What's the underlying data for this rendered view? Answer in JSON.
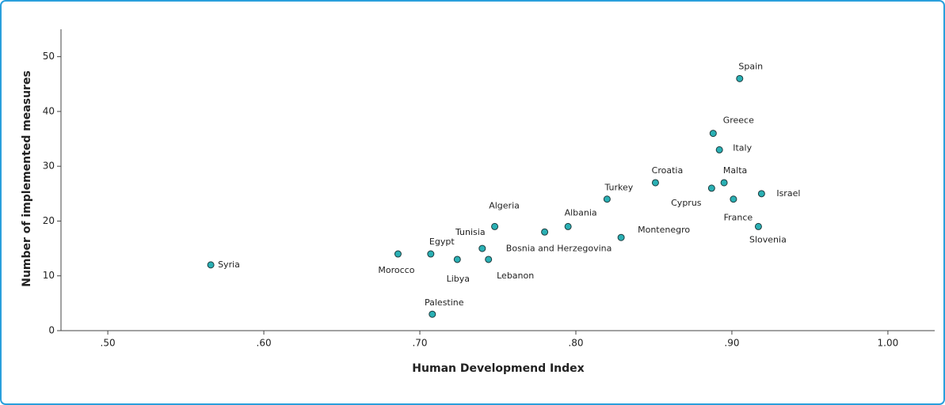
{
  "chart_data": {
    "type": "scatter",
    "xlabel": "Human Developmend Index",
    "ylabel": "Number of implemented measures",
    "labels": [
      "Syria",
      "Morocco",
      "Egypt",
      "Palestine",
      "Libya",
      "Tunisia",
      "Lebanon",
      "Algeria",
      "Bosnia and Herzegovina",
      "Albania",
      "Turkey",
      "Montenegro",
      "Croatia",
      "Cyprus",
      "Greece",
      "Italy",
      "Malta",
      "France",
      "Spain",
      "Slovenia",
      "Israel"
    ],
    "x": [
      0.566,
      0.686,
      0.707,
      0.708,
      0.724,
      0.74,
      0.744,
      0.748,
      0.78,
      0.795,
      0.82,
      0.829,
      0.851,
      0.887,
      0.888,
      0.892,
      0.895,
      0.901,
      0.905,
      0.917,
      0.919
    ],
    "values": [
      12,
      14,
      14,
      3,
      13,
      15,
      13,
      19,
      18,
      19,
      24,
      17,
      27,
      26,
      36,
      33,
      27,
      24,
      46,
      19,
      25
    ],
    "color": "#2ab0b4",
    "xlim": [
      0.47,
      1.03
    ],
    "xticks": [
      {
        "value": 0.5,
        "label": ".50"
      },
      {
        "value": 0.6,
        "label": ".60"
      },
      {
        "value": 0.7,
        "label": ".70"
      },
      {
        "value": 0.8,
        "label": ".80"
      },
      {
        "value": 0.9,
        "label": ".90"
      },
      {
        "value": 1.0,
        "label": "1.00"
      }
    ],
    "ylim": [
      0,
      55
    ],
    "yticks": [
      0,
      10,
      20,
      30,
      40,
      50
    ]
  }
}
